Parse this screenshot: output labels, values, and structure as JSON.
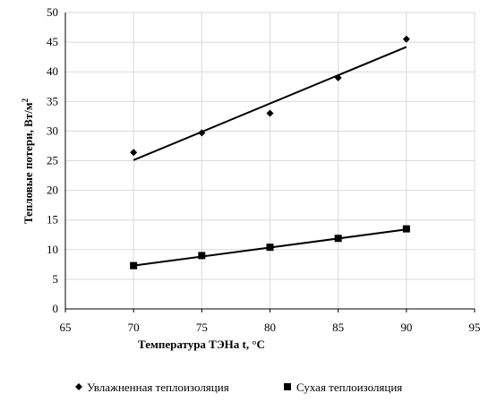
{
  "chart_data": {
    "type": "scatter",
    "xlabel": "Температура ТЭНа t, °С",
    "ylabel": "Тепловые потери, Вт/м",
    "ylabel_sup": "2",
    "xlim": [
      65,
      95
    ],
    "ylim": [
      0,
      50
    ],
    "x_ticks": [
      65,
      70,
      75,
      80,
      85,
      90,
      95
    ],
    "y_ticks": [
      0,
      5,
      10,
      15,
      20,
      25,
      30,
      35,
      40,
      45,
      50
    ],
    "grid": true,
    "legend_position": "bottom",
    "series": [
      {
        "name": "Увлажненная теплоизоляция",
        "marker": "diamond",
        "color": "#000000",
        "x": [
          70,
          75,
          80,
          85,
          90
        ],
        "y": [
          26.4,
          29.7,
          33.0,
          39.0,
          45.5
        ],
        "trendline": {
          "x": [
            70,
            90
          ],
          "y": [
            25.1,
            44.2
          ]
        }
      },
      {
        "name": "Сухая теплоизоляция",
        "marker": "square",
        "color": "#000000",
        "x": [
          70,
          75,
          80,
          85,
          90
        ],
        "y": [
          7.3,
          9.0,
          10.4,
          11.9,
          13.5
        ],
        "trendline": {
          "x": [
            70,
            90
          ],
          "y": [
            7.3,
            13.4
          ]
        }
      }
    ]
  }
}
